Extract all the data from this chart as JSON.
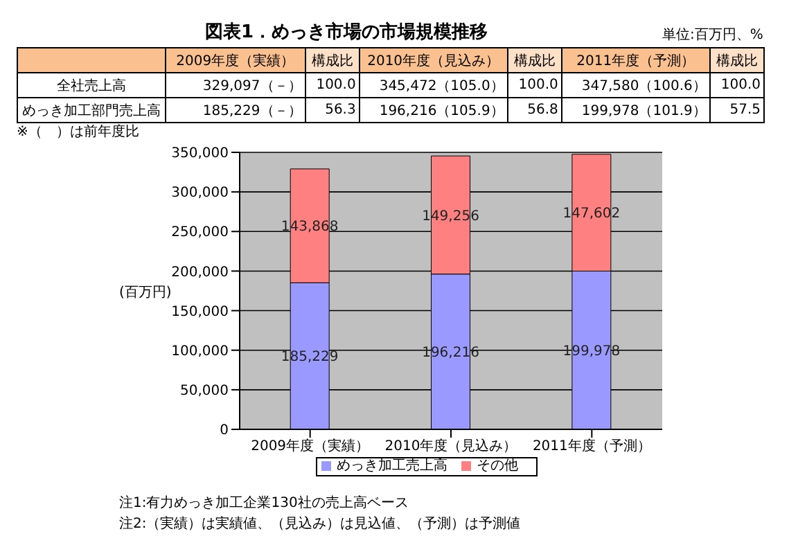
{
  "chart_data": {
    "type": "bar",
    "title": "図表1．めっき市場の市場規模推移",
    "ylabel": "(百万円)",
    "categories": [
      "2009年度（実績）",
      "2010年度（見込み）",
      "2011年度（予測）"
    ],
    "series": [
      {
        "name": "めっき加工売上高",
        "color": "#9999ff",
        "values": [
          185229,
          196216,
          199978
        ],
        "value_labels": [
          "185,229",
          "196,216",
          "199,978"
        ]
      },
      {
        "name": "その他",
        "color": "#ff8080",
        "values": [
          143868,
          149256,
          147602
        ],
        "value_labels": [
          "143,868",
          "149,256",
          "147,602"
        ]
      }
    ],
    "stacked": true,
    "ylim": [
      0,
      350000
    ],
    "yticks": [
      0,
      {
        "value": 50000,
        "label": "50,000"
      },
      {
        "value": 100000,
        "label": "100,000"
      },
      {
        "value": 150000,
        "label": "150,000"
      },
      {
        "value": 200000,
        "label": "200,000"
      },
      {
        "value": 250000,
        "label": "250,000"
      },
      {
        "value": 300000,
        "label": "300,000"
      },
      {
        "value": 350000,
        "label": "350,000"
      }
    ],
    "grid": "y",
    "legend": "bottom",
    "annotations": [
      "単位:百万円、%",
      "2009年度（実績）",
      "構成比",
      "2010年度（見込み）",
      "構成比",
      "2011年度（予測）",
      "構成比",
      "全社売上高",
      "329,097（－）",
      "100.0",
      "345,472（105.0）",
      "100.0",
      "347,580（100.6）",
      "100.0",
      "めっき加工部門売上高",
      "185,229（－）",
      "56.3",
      "196,216（105.9）",
      "56.8",
      "199,978（101.9）",
      "57.5",
      "※（　）は前年度比",
      "注1:有力めっき加工企業130社の売上高ベース",
      "注2:（実績）は実績値、（見込み）は見込値、（予測）は予測値"
    ]
  }
}
